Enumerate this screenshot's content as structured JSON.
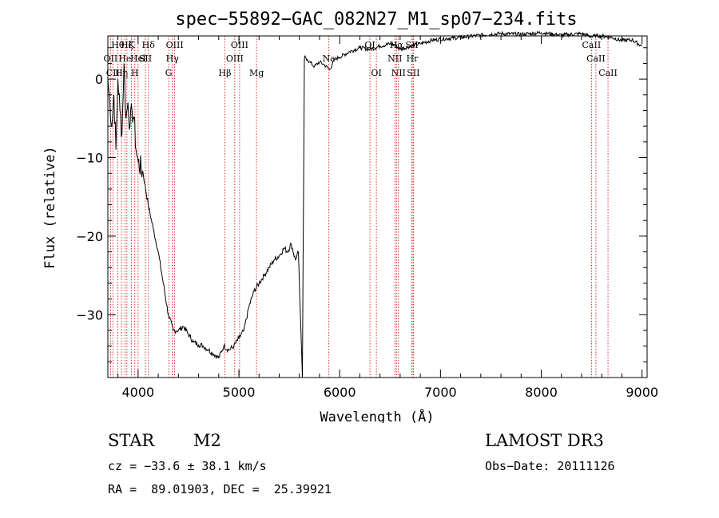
{
  "chart_data": {
    "type": "line",
    "title": "spec−55892−GAC_082N27_M1_sp07−234.fits",
    "xlabel": "Wavelength (Å)",
    "ylabel": "Flux (relative)",
    "xlim": [
      3700,
      9050
    ],
    "ylim": [
      -38,
      5.5
    ],
    "x_ticks": [
      4000,
      5000,
      6000,
      7000,
      8000,
      9000
    ],
    "x_tick_labels": [
      "4000",
      "5000",
      "6000",
      "7000",
      "8000",
      "9000"
    ],
    "y_ticks": [
      0,
      -10,
      -20,
      -30
    ],
    "y_tick_labels": [
      "0",
      "−10",
      "−20",
      "−30"
    ],
    "series": [
      {
        "name": "flux",
        "x": [
          3700,
          3720,
          3740,
          3760,
          3780,
          3800,
          3820,
          3840,
          3860,
          3880,
          3900,
          3920,
          3940,
          3960,
          3980,
          4000,
          4050,
          4100,
          4150,
          4200,
          4250,
          4300,
          4350,
          4400,
          4450,
          4500,
          4550,
          4600,
          4650,
          4700,
          4750,
          4800,
          4850,
          4900,
          4950,
          5000,
          5050,
          5100,
          5150,
          5200,
          5250,
          5300,
          5350,
          5400,
          5450,
          5480,
          5520,
          5560,
          5590,
          5610,
          5630,
          5650,
          5655,
          5660,
          5680,
          5700,
          5750,
          5800,
          5850,
          5900,
          5950,
          6000,
          6100,
          6200,
          6300,
          6400,
          6500,
          6550,
          6600,
          6700,
          6800,
          6900,
          7000,
          7200,
          7400,
          7600,
          7800,
          8000,
          8200,
          8400,
          8500,
          8550,
          8600,
          8700,
          8800,
          8900,
          9000
        ],
        "y": [
          0,
          -3,
          -6,
          -2,
          -9,
          0,
          -4,
          -7,
          2,
          -5,
          -3,
          -6,
          -4,
          -5,
          -9,
          -10.5,
          -12,
          -16,
          -19,
          -22,
          -26,
          -30,
          -32,
          -32,
          -31.5,
          -32.5,
          -33.5,
          -33.8,
          -34,
          -34.5,
          -35,
          -35.5,
          -34,
          -34.5,
          -34,
          -33,
          -32,
          -29,
          -27,
          -26,
          -25,
          -24,
          -23,
          -22.5,
          -21.5,
          -22,
          -21,
          -23,
          -22,
          -30,
          -38,
          2.5,
          3,
          2.8,
          2.5,
          2.2,
          1.6,
          2.2,
          1.8,
          1.2,
          2.5,
          2.8,
          3.5,
          4,
          3.8,
          4.2,
          4.5,
          4.3,
          3.8,
          4.2,
          4.5,
          4.9,
          5.1,
          5.3,
          5.6,
          5.8,
          5.7,
          5.9,
          5.6,
          5.8,
          5.4,
          5.5,
          5.5,
          5.3,
          4.9,
          5.0,
          4.2
        ]
      }
    ],
    "spectral_lines": [
      {
        "wl": 3727,
        "label": "OII",
        "row": 2
      },
      {
        "wl": 3750,
        "label": "CII",
        "row": 3
      },
      {
        "wl": 3798,
        "label": "Hθ",
        "row": 1
      },
      {
        "wl": 3835,
        "label": "Hη",
        "row": 3
      },
      {
        "wl": 3869,
        "label": "He",
        "row": 2
      },
      {
        "wl": 3889,
        "label": "Hζ",
        "row": 1
      },
      {
        "wl": 3934,
        "label": "K",
        "row": 1
      },
      {
        "wl": 3968,
        "label": "H",
        "row": 3
      },
      {
        "wl": 4000,
        "label": "Hel",
        "row": 2
      },
      {
        "wl": 4072,
        "label": "SII",
        "row": 2
      },
      {
        "wl": 4102,
        "label": "Hδ",
        "row": 1
      },
      {
        "wl": 4304,
        "label": "G",
        "row": 3
      },
      {
        "wl": 4340,
        "label": "Hγ",
        "row": 2
      },
      {
        "wl": 4363,
        "label": "OIII",
        "row": 1
      },
      {
        "wl": 4861,
        "label": "Hβ",
        "row": 3
      },
      {
        "wl": 4959,
        "label": "OIII",
        "row": 2
      },
      {
        "wl": 5007,
        "label": "OIII",
        "row": 1
      },
      {
        "wl": 5175,
        "label": "Mg",
        "row": 3
      },
      {
        "wl": 5893,
        "label": "Na",
        "row": 2
      },
      {
        "wl": 6300,
        "label": "OI",
        "row": 1
      },
      {
        "wl": 6364,
        "label": "OI",
        "row": 3
      },
      {
        "wl": 6548,
        "label": "NII",
        "row": 2
      },
      {
        "wl": 6563,
        "label": "Hα",
        "row": 1
      },
      {
        "wl": 6583,
        "label": "NII",
        "row": 3
      },
      {
        "wl": 6717,
        "label": "SII",
        "row": 1
      },
      {
        "wl": 6720,
        "label": "Hr",
        "row": 2
      },
      {
        "wl": 6731,
        "label": "SII",
        "row": 3
      },
      {
        "wl": 8498,
        "label": "CaII",
        "row": 1
      },
      {
        "wl": 8542,
        "label": "CaII",
        "row": 2
      },
      {
        "wl": 8662,
        "label": "CaII",
        "row": 3
      }
    ],
    "line_color": "#cc0000",
    "grid": false
  },
  "info": {
    "object_class": "STAR",
    "subclass": "M2",
    "redshift": "cz = −33.6 ± 38.1 km/s",
    "coords": "RA =  89.01903, DEC =  25.39921",
    "survey": "LAMOST DR3",
    "obs_date": "Obs−Date: 20111126"
  }
}
